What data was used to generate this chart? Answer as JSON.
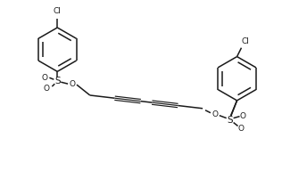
{
  "bg_color": "#ffffff",
  "line_color": "#1a1a1a",
  "lw": 1.1,
  "fig_width": 3.16,
  "fig_height": 2.1,
  "dpi": 100,
  "xlim": [
    0,
    316
  ],
  "ylim": [
    0,
    210
  ]
}
